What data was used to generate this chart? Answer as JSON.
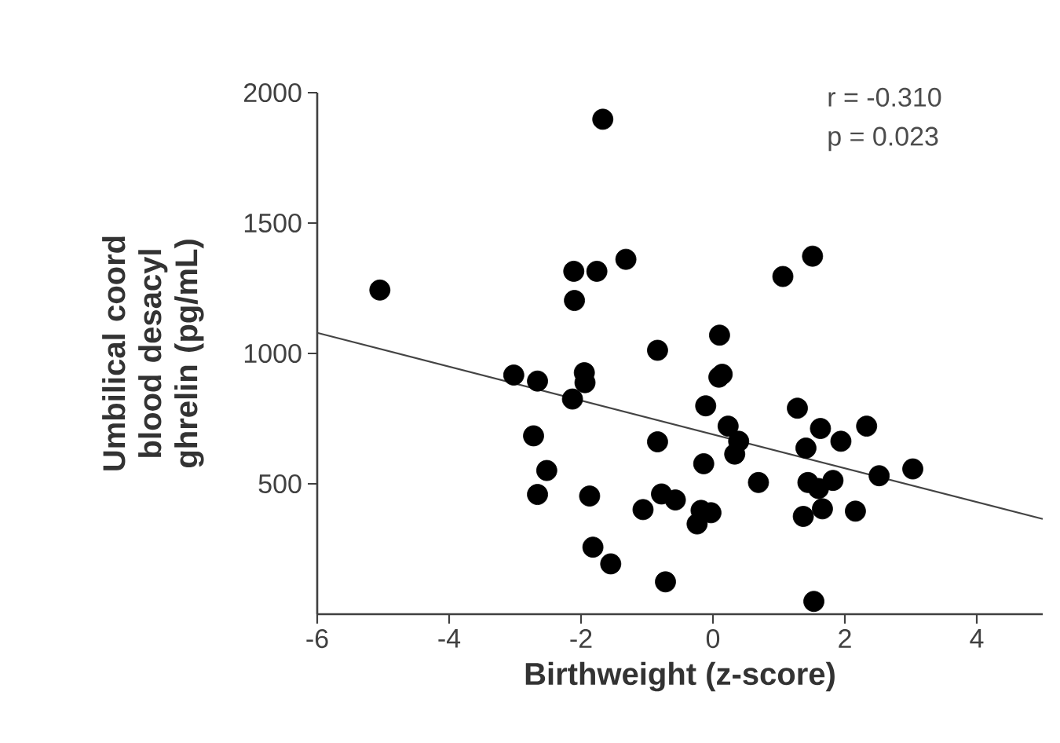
{
  "chart_data": {
    "type": "scatter",
    "xlabel": "Birthweight (z-score)",
    "ylabel": "Umbilical coord blood desacyl ghrelin (pg/mL)",
    "annotations": [
      "r = -0.310",
      "p = 0.023"
    ],
    "xlim": [
      -6,
      5
    ],
    "ylim": [
      0,
      2000
    ],
    "xticks": [
      -6,
      -4,
      -2,
      0,
      2,
      4
    ],
    "yticks": [
      500,
      1000,
      1500,
      2000
    ],
    "grid": false,
    "series": [
      {
        "marker": "circle",
        "color": "#000000",
        "x": [
          -5.05,
          -1.67,
          -2.11,
          -1.76,
          -1.32,
          -2.1,
          1.06,
          1.51,
          -0.84,
          0.1,
          -3.02,
          -2.66,
          -1.95,
          -1.94,
          -2.13,
          -2.72,
          -2.52,
          -2.66,
          -1.87,
          -1.82,
          -1.55,
          -0.72,
          -0.84,
          -1.06,
          -0.78,
          -0.57,
          -0.11,
          0.09,
          0.14,
          -0.14,
          0.23,
          0.39,
          0.33,
          0.69,
          -0.18,
          -0.03,
          -0.24,
          1.28,
          1.63,
          1.94,
          2.33,
          1.41,
          2.52,
          3.03,
          1.82,
          1.44,
          1.6,
          1.66,
          1.37,
          2.16,
          1.53
        ],
        "values": [
          1243,
          1898,
          1315,
          1315,
          1361,
          1203,
          1295,
          1373,
          1012,
          1070,
          917,
          894,
          926,
          888,
          825,
          684,
          551,
          459,
          453,
          257,
          193,
          124,
          661,
          401,
          461,
          438,
          799,
          909,
          920,
          577,
          721,
          663,
          614,
          505,
          398,
          389,
          346,
          790,
          712,
          663,
          721,
          637,
          531,
          557,
          513,
          505,
          482,
          404,
          375,
          395,
          49
        ]
      },
      {
        "type": "line",
        "marker": "none",
        "line_style": "solid",
        "color": "#444444",
        "x": [
          -6,
          5
        ],
        "values": [
          1079,
          365
        ]
      }
    ]
  }
}
